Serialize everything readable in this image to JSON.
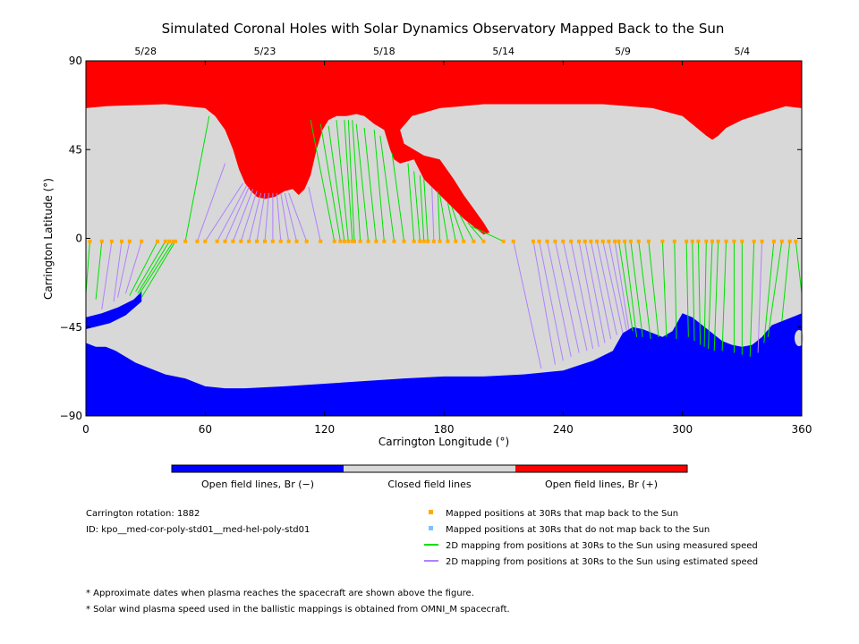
{
  "title": "Simulated Coronal Holes with Solar Dynamics Observatory Mapped Back to the Sun",
  "colors": {
    "open_negative": "#0000ff",
    "closed": "#d8d8d8",
    "open_positive": "#ff0000",
    "measured_line": "#00e000",
    "estimated_line": "#b080ff",
    "maps_back": "#ffaa00",
    "no_map_back": "#80c0ff"
  },
  "colorbar": {
    "labels": [
      "Open field lines, Br (−)",
      "Closed field lines",
      "Open field lines, Br (+)"
    ]
  },
  "info": {
    "rotation": "Carrington rotation: 1882",
    "id": "ID: kpo__med-cor-poly-std01__med-hel-poly-std01"
  },
  "legend": [
    {
      "kind": "point",
      "color": "#ffaa00",
      "label": "Mapped positions at 30Rs that map back to the Sun"
    },
    {
      "kind": "point",
      "color": "#80c0ff",
      "label": "Mapped positions at 30Rs that do not map back to the Sun"
    },
    {
      "kind": "line",
      "color": "#00e000",
      "label": "2D mapping from positions at 30Rs to the Sun using measured speed"
    },
    {
      "kind": "line",
      "color": "#b080ff",
      "label": "2D mapping from positions at 30Rs to the Sun using estimated speed"
    }
  ],
  "notes": [
    "* Approximate dates when plasma reaches the spacecraft are shown above the figure.",
    "* Solar wind plasma speed used in the ballistic mappings is obtained from OMNI_M spacecraft."
  ],
  "chart_data": {
    "type": "scatter",
    "title": "Simulated Coronal Holes with Solar Dynamics Observatory Mapped Back to the Sun",
    "xlabel": "Carrington Longitude (°)",
    "ylabel": "Carrington Latitude (°)",
    "xlim": [
      0,
      360
    ],
    "ylim": [
      -90,
      90
    ],
    "x_ticks": [
      0,
      60,
      120,
      180,
      240,
      300,
      360
    ],
    "y_ticks": [
      90,
      45,
      0,
      -45,
      -90
    ],
    "top_dates": [
      {
        "label": "5/28",
        "lon": 30
      },
      {
        "label": "5/23",
        "lon": 90
      },
      {
        "label": "5/18",
        "lon": 150
      },
      {
        "label": "5/14",
        "lon": 210
      },
      {
        "label": "5/9",
        "lon": 270
      },
      {
        "label": "5/4",
        "lon": 330
      }
    ],
    "regions": {
      "positive_open_boundary": [
        [
          0,
          66
        ],
        [
          10,
          67
        ],
        [
          40,
          68
        ],
        [
          60,
          66
        ],
        [
          65,
          62
        ],
        [
          70,
          55
        ],
        [
          74,
          45
        ],
        [
          77,
          35
        ],
        [
          80,
          28
        ],
        [
          83,
          24
        ],
        [
          86,
          21
        ],
        [
          90,
          20
        ],
        [
          95,
          21
        ],
        [
          100,
          24
        ],
        [
          104,
          25
        ],
        [
          107,
          22
        ],
        [
          110,
          25
        ],
        [
          113,
          32
        ],
        [
          116,
          45
        ],
        [
          119,
          55
        ],
        [
          122,
          60
        ],
        [
          126,
          62
        ],
        [
          131,
          62
        ],
        [
          136,
          63
        ],
        [
          140,
          62
        ],
        [
          145,
          58
        ],
        [
          150,
          55
        ],
        [
          153,
          45
        ],
        [
          155,
          40
        ],
        [
          158,
          38
        ],
        [
          165,
          40
        ],
        [
          170,
          30
        ],
        [
          175,
          25
        ],
        [
          180,
          20
        ],
        [
          185,
          15
        ],
        [
          190,
          10
        ],
        [
          195,
          6
        ],
        [
          200,
          2
        ],
        [
          203,
          3
        ],
        [
          200,
          8
        ],
        [
          195,
          15
        ],
        [
          190,
          22
        ],
        [
          185,
          30
        ],
        [
          178,
          40
        ],
        [
          170,
          42
        ],
        [
          160,
          48
        ],
        [
          158,
          55
        ],
        [
          164,
          62
        ],
        [
          178,
          66
        ],
        [
          200,
          68
        ],
        [
          230,
          68
        ],
        [
          260,
          68
        ],
        [
          285,
          66
        ],
        [
          300,
          62
        ],
        [
          306,
          57
        ],
        [
          312,
          52
        ],
        [
          315,
          50
        ],
        [
          318,
          52
        ],
        [
          322,
          56
        ],
        [
          330,
          60
        ],
        [
          342,
          64
        ],
        [
          352,
          67
        ],
        [
          360,
          66
        ]
      ],
      "negative_open_boundary": [
        [
          0,
          -53
        ],
        [
          5,
          -55
        ],
        [
          10,
          -55
        ],
        [
          15,
          -57
        ],
        [
          20,
          -60
        ],
        [
          25,
          -63
        ],
        [
          30,
          -65
        ],
        [
          40,
          -69
        ],
        [
          50,
          -71
        ],
        [
          60,
          -75
        ],
        [
          70,
          -76
        ],
        [
          80,
          -76
        ],
        [
          100,
          -75
        ],
        [
          130,
          -73
        ],
        [
          160,
          -71
        ],
        [
          180,
          -70
        ],
        [
          200,
          -70
        ],
        [
          220,
          -69
        ],
        [
          240,
          -67
        ],
        [
          255,
          -62
        ],
        [
          265,
          -57
        ],
        [
          270,
          -48
        ],
        [
          275,
          -45
        ],
        [
          280,
          -46
        ],
        [
          285,
          -48
        ],
        [
          290,
          -50
        ],
        [
          295,
          -47
        ],
        [
          300,
          -38
        ],
        [
          305,
          -40
        ],
        [
          315,
          -48
        ],
        [
          320,
          -52
        ],
        [
          325,
          -54
        ],
        [
          330,
          -55
        ],
        [
          335,
          -54
        ],
        [
          340,
          -50
        ],
        [
          345,
          -44
        ],
        [
          350,
          -42
        ],
        [
          355,
          -40
        ],
        [
          360,
          -38
        ]
      ],
      "negative_lobe_left": [
        [
          0,
          -40
        ],
        [
          8,
          -38
        ],
        [
          16,
          -35
        ],
        [
          24,
          -31
        ],
        [
          28,
          -27
        ],
        [
          28,
          -32
        ],
        [
          20,
          -39
        ],
        [
          12,
          -43
        ],
        [
          0,
          -46
        ]
      ]
    },
    "mapped_points_latitude": -1.5,
    "mappings": [
      {
        "lon": 2,
        "foot_lon": 0,
        "foot_lat": -28,
        "speed": "measured"
      },
      {
        "lon": 8,
        "foot_lon": 5,
        "foot_lat": -31,
        "speed": "measured"
      },
      {
        "lon": 13,
        "foot_lon": 8,
        "foot_lat": -36,
        "speed": "estimated"
      },
      {
        "lon": 18,
        "foot_lon": 14,
        "foot_lat": -32,
        "speed": "estimated"
      },
      {
        "lon": 22,
        "foot_lon": 16,
        "foot_lat": -30,
        "speed": "estimated"
      },
      {
        "lon": 28,
        "foot_lon": 20,
        "foot_lat": -28,
        "speed": "estimated"
      },
      {
        "lon": 36,
        "foot_lon": 22,
        "foot_lat": -29,
        "speed": "measured"
      },
      {
        "lon": 40,
        "foot_lon": 25,
        "foot_lat": -27,
        "speed": "measured"
      },
      {
        "lon": 42,
        "foot_lon": 26,
        "foot_lat": -28,
        "speed": "measured"
      },
      {
        "lon": 44,
        "foot_lon": 27,
        "foot_lat": -28,
        "speed": "measured"
      },
      {
        "lon": 45,
        "foot_lon": 28,
        "foot_lat": -30,
        "speed": "measured"
      },
      {
        "lon": 50,
        "foot_lon": 62,
        "foot_lat": 62,
        "speed": "measured"
      },
      {
        "lon": 56,
        "foot_lon": 70,
        "foot_lat": 38,
        "speed": "estimated"
      },
      {
        "lon": 60,
        "foot_lon": 79,
        "foot_lat": 28,
        "speed": "estimated"
      },
      {
        "lon": 66,
        "foot_lon": 81,
        "foot_lat": 27,
        "speed": "estimated"
      },
      {
        "lon": 70,
        "foot_lon": 82,
        "foot_lat": 26,
        "speed": "estimated"
      },
      {
        "lon": 74,
        "foot_lon": 84,
        "foot_lat": 25,
        "speed": "estimated"
      },
      {
        "lon": 78,
        "foot_lon": 86,
        "foot_lat": 24,
        "speed": "estimated"
      },
      {
        "lon": 82,
        "foot_lon": 88,
        "foot_lat": 23,
        "speed": "estimated"
      },
      {
        "lon": 86,
        "foot_lon": 90,
        "foot_lat": 23,
        "speed": "estimated"
      },
      {
        "lon": 90,
        "foot_lon": 92,
        "foot_lat": 23,
        "speed": "estimated"
      },
      {
        "lon": 94,
        "foot_lon": 94,
        "foot_lat": 23,
        "speed": "estimated"
      },
      {
        "lon": 98,
        "foot_lon": 96,
        "foot_lat": 23,
        "speed": "estimated"
      },
      {
        "lon": 102,
        "foot_lon": 98,
        "foot_lat": 23,
        "speed": "estimated"
      },
      {
        "lon": 106,
        "foot_lon": 100,
        "foot_lat": 23,
        "speed": "estimated"
      },
      {
        "lon": 111,
        "foot_lon": 102,
        "foot_lat": 23,
        "speed": "estimated"
      },
      {
        "lon": 118,
        "foot_lon": 112,
        "foot_lat": 26,
        "speed": "estimated"
      },
      {
        "lon": 125,
        "foot_lon": 113,
        "foot_lat": 60,
        "speed": "measured"
      },
      {
        "lon": 128,
        "foot_lon": 118,
        "foot_lat": 58,
        "speed": "measured"
      },
      {
        "lon": 130,
        "foot_lon": 122,
        "foot_lat": 57,
        "speed": "measured"
      },
      {
        "lon": 132,
        "foot_lon": 126,
        "foot_lat": 60,
        "speed": "measured"
      },
      {
        "lon": 134,
        "foot_lon": 130,
        "foot_lat": 60,
        "speed": "measured"
      },
      {
        "lon": 135,
        "foot_lon": 132,
        "foot_lat": 60,
        "speed": "measured"
      },
      {
        "lon": 138,
        "foot_lon": 134,
        "foot_lat": 60,
        "speed": "measured"
      },
      {
        "lon": 142,
        "foot_lon": 136,
        "foot_lat": 58,
        "speed": "measured"
      },
      {
        "lon": 146,
        "foot_lon": 140,
        "foot_lat": 56,
        "speed": "measured"
      },
      {
        "lon": 150,
        "foot_lon": 145,
        "foot_lat": 55,
        "speed": "measured"
      },
      {
        "lon": 155,
        "foot_lon": 148,
        "foot_lat": 52,
        "speed": "measured"
      },
      {
        "lon": 160,
        "foot_lon": 154,
        "foot_lat": 43,
        "speed": "measured"
      },
      {
        "lon": 165,
        "foot_lon": 162,
        "foot_lat": 38,
        "speed": "measured"
      },
      {
        "lon": 168,
        "foot_lon": 165,
        "foot_lat": 34,
        "speed": "measured"
      },
      {
        "lon": 170,
        "foot_lon": 168,
        "foot_lat": 32,
        "speed": "measured"
      },
      {
        "lon": 172,
        "foot_lon": 170,
        "foot_lat": 30,
        "speed": "measured"
      },
      {
        "lon": 175,
        "foot_lon": 174,
        "foot_lat": 26,
        "speed": "estimated"
      },
      {
        "lon": 178,
        "foot_lon": 177,
        "foot_lat": 24,
        "speed": "measured"
      },
      {
        "lon": 182,
        "foot_lon": 178,
        "foot_lat": 22,
        "speed": "measured"
      },
      {
        "lon": 186,
        "foot_lon": 182,
        "foot_lat": 18,
        "speed": "measured"
      },
      {
        "lon": 190,
        "foot_lon": 184,
        "foot_lat": 16,
        "speed": "measured"
      },
      {
        "lon": 195,
        "foot_lon": 188,
        "foot_lat": 12,
        "speed": "measured"
      },
      {
        "lon": 200,
        "foot_lon": 192,
        "foot_lat": 8,
        "speed": "measured"
      },
      {
        "lon": 210,
        "foot_lon": 194,
        "foot_lat": 6,
        "speed": "measured"
      },
      {
        "lon": 215,
        "foot_lon": 229,
        "foot_lat": -66,
        "speed": "estimated"
      },
      {
        "lon": 225,
        "foot_lon": 236,
        "foot_lat": -64,
        "speed": "estimated"
      },
      {
        "lon": 228,
        "foot_lon": 240,
        "foot_lat": -62,
        "speed": "estimated"
      },
      {
        "lon": 232,
        "foot_lon": 244,
        "foot_lat": -60,
        "speed": "estimated"
      },
      {
        "lon": 236,
        "foot_lon": 248,
        "foot_lat": -58,
        "speed": "estimated"
      },
      {
        "lon": 240,
        "foot_lon": 252,
        "foot_lat": -57,
        "speed": "estimated"
      },
      {
        "lon": 244,
        "foot_lon": 255,
        "foot_lat": -56,
        "speed": "estimated"
      },
      {
        "lon": 248,
        "foot_lon": 258,
        "foot_lat": -55,
        "speed": "estimated"
      },
      {
        "lon": 251,
        "foot_lon": 261,
        "foot_lat": -53,
        "speed": "estimated"
      },
      {
        "lon": 254,
        "foot_lon": 264,
        "foot_lat": -51,
        "speed": "estimated"
      },
      {
        "lon": 257,
        "foot_lon": 267,
        "foot_lat": -49,
        "speed": "estimated"
      },
      {
        "lon": 260,
        "foot_lon": 270,
        "foot_lat": -48,
        "speed": "estimated"
      },
      {
        "lon": 263,
        "foot_lon": 272,
        "foot_lat": -47,
        "speed": "estimated"
      },
      {
        "lon": 266,
        "foot_lon": 273,
        "foot_lat": -46,
        "speed": "estimated"
      },
      {
        "lon": 268,
        "foot_lon": 275,
        "foot_lat": -47,
        "speed": "measured"
      },
      {
        "lon": 271,
        "foot_lon": 277,
        "foot_lat": -50,
        "speed": "measured"
      },
      {
        "lon": 274,
        "foot_lon": 280,
        "foot_lat": -50,
        "speed": "measured"
      },
      {
        "lon": 278,
        "foot_lon": 284,
        "foot_lat": -51,
        "speed": "measured"
      },
      {
        "lon": 283,
        "foot_lon": 288,
        "foot_lat": -50,
        "speed": "measured"
      },
      {
        "lon": 290,
        "foot_lon": 292,
        "foot_lat": -50,
        "speed": "measured"
      },
      {
        "lon": 296,
        "foot_lon": 297,
        "foot_lat": -51,
        "speed": "measured"
      },
      {
        "lon": 302,
        "foot_lon": 303,
        "foot_lat": -50,
        "speed": "measured"
      },
      {
        "lon": 305,
        "foot_lon": 306,
        "foot_lat": -52,
        "speed": "measured"
      },
      {
        "lon": 308,
        "foot_lon": 309,
        "foot_lat": -54,
        "speed": "measured"
      },
      {
        "lon": 312,
        "foot_lon": 311,
        "foot_lat": -55,
        "speed": "measured"
      },
      {
        "lon": 315,
        "foot_lon": 313,
        "foot_lat": -56,
        "speed": "measured"
      },
      {
        "lon": 318,
        "foot_lon": 316,
        "foot_lat": -57,
        "speed": "measured"
      },
      {
        "lon": 322,
        "foot_lon": 320,
        "foot_lat": -57,
        "speed": "measured"
      },
      {
        "lon": 326,
        "foot_lon": 326,
        "foot_lat": -58,
        "speed": "measured"
      },
      {
        "lon": 330,
        "foot_lon": 330,
        "foot_lat": -59,
        "speed": "measured"
      },
      {
        "lon": 336,
        "foot_lon": 334,
        "foot_lat": -60,
        "speed": "measured"
      },
      {
        "lon": 340,
        "foot_lon": 338,
        "foot_lat": -58,
        "speed": "estimated"
      },
      {
        "lon": 346,
        "foot_lon": 341,
        "foot_lat": -53,
        "speed": "measured"
      },
      {
        "lon": 350,
        "foot_lon": 343,
        "foot_lat": -50,
        "speed": "measured"
      },
      {
        "lon": 354,
        "foot_lon": 350,
        "foot_lat": -42,
        "speed": "measured"
      },
      {
        "lon": 357,
        "foot_lon": 360,
        "foot_lat": -28,
        "speed": "measured"
      }
    ]
  }
}
